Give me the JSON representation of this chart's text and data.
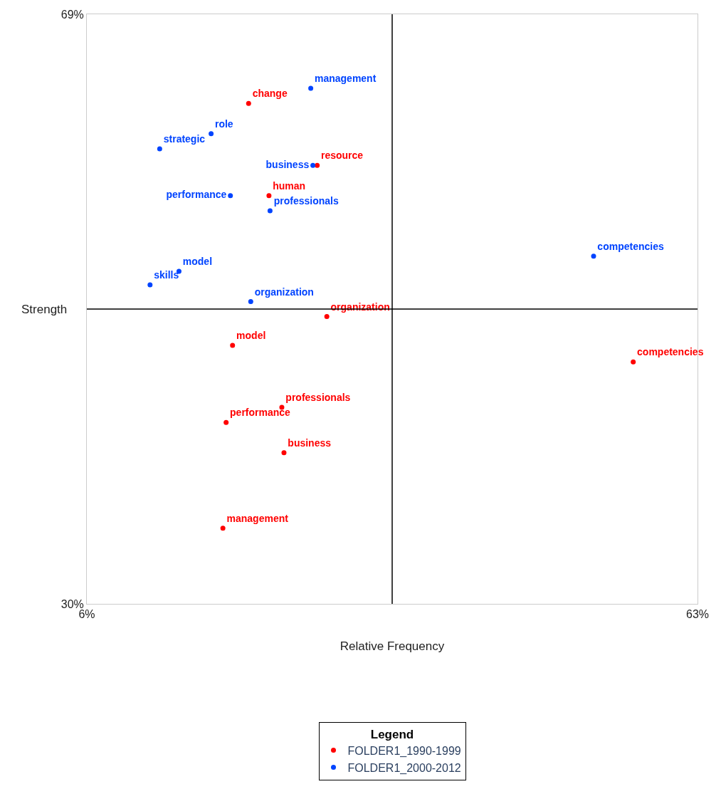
{
  "chart_data": {
    "type": "scatter",
    "xlabel": "Relative Frequency",
    "ylabel": "Strength",
    "legend_title": "Legend",
    "legend": "bottom",
    "marker": "circle",
    "xlim": [
      6,
      63
    ],
    "xticks": [
      {
        "value": 6,
        "label": "6%"
      },
      {
        "value": 63,
        "label": "63%"
      }
    ],
    "ylim": [
      30,
      69
    ],
    "yticks": [
      {
        "value": 30,
        "label": "30%"
      },
      {
        "value": 69,
        "label": "69%"
      }
    ],
    "ref_lines": [
      {
        "axis": "x",
        "value": 34.5,
        "color": "#000000"
      },
      {
        "axis": "y",
        "value": 49.5,
        "color": "#000000"
      }
    ],
    "series": [
      {
        "name": "FOLDER1_1990-1999",
        "color": "#ff0000",
        "x": [
          21.1,
          27.5,
          23.0,
          28.4,
          19.6,
          57.0,
          24.2,
          19.0,
          24.4,
          18.7
        ],
        "values": [
          63.1,
          59.0,
          57.0,
          49.0,
          47.1,
          46.0,
          43.0,
          42.0,
          40.0,
          35.0
        ],
        "value_labels": [
          "change",
          "resource",
          "human",
          "organization",
          "model",
          "competencies",
          "professionals",
          "performance",
          "business",
          "management"
        ]
      },
      {
        "name": "FOLDER1_2000-2012",
        "color": "#0044ff",
        "x": [
          26.9,
          17.6,
          12.8,
          27.1,
          19.4,
          23.1,
          53.3,
          14.6,
          11.9,
          21.3
        ],
        "values": [
          64.1,
          61.1,
          60.1,
          59.0,
          57.0,
          56.0,
          53.0,
          52.0,
          51.1,
          50.0
        ],
        "value_labels": [
          "management",
          "role",
          "strategic",
          "business",
          "performance",
          "professionals",
          "competencies",
          "model",
          "skills",
          "organization"
        ]
      }
    ]
  }
}
